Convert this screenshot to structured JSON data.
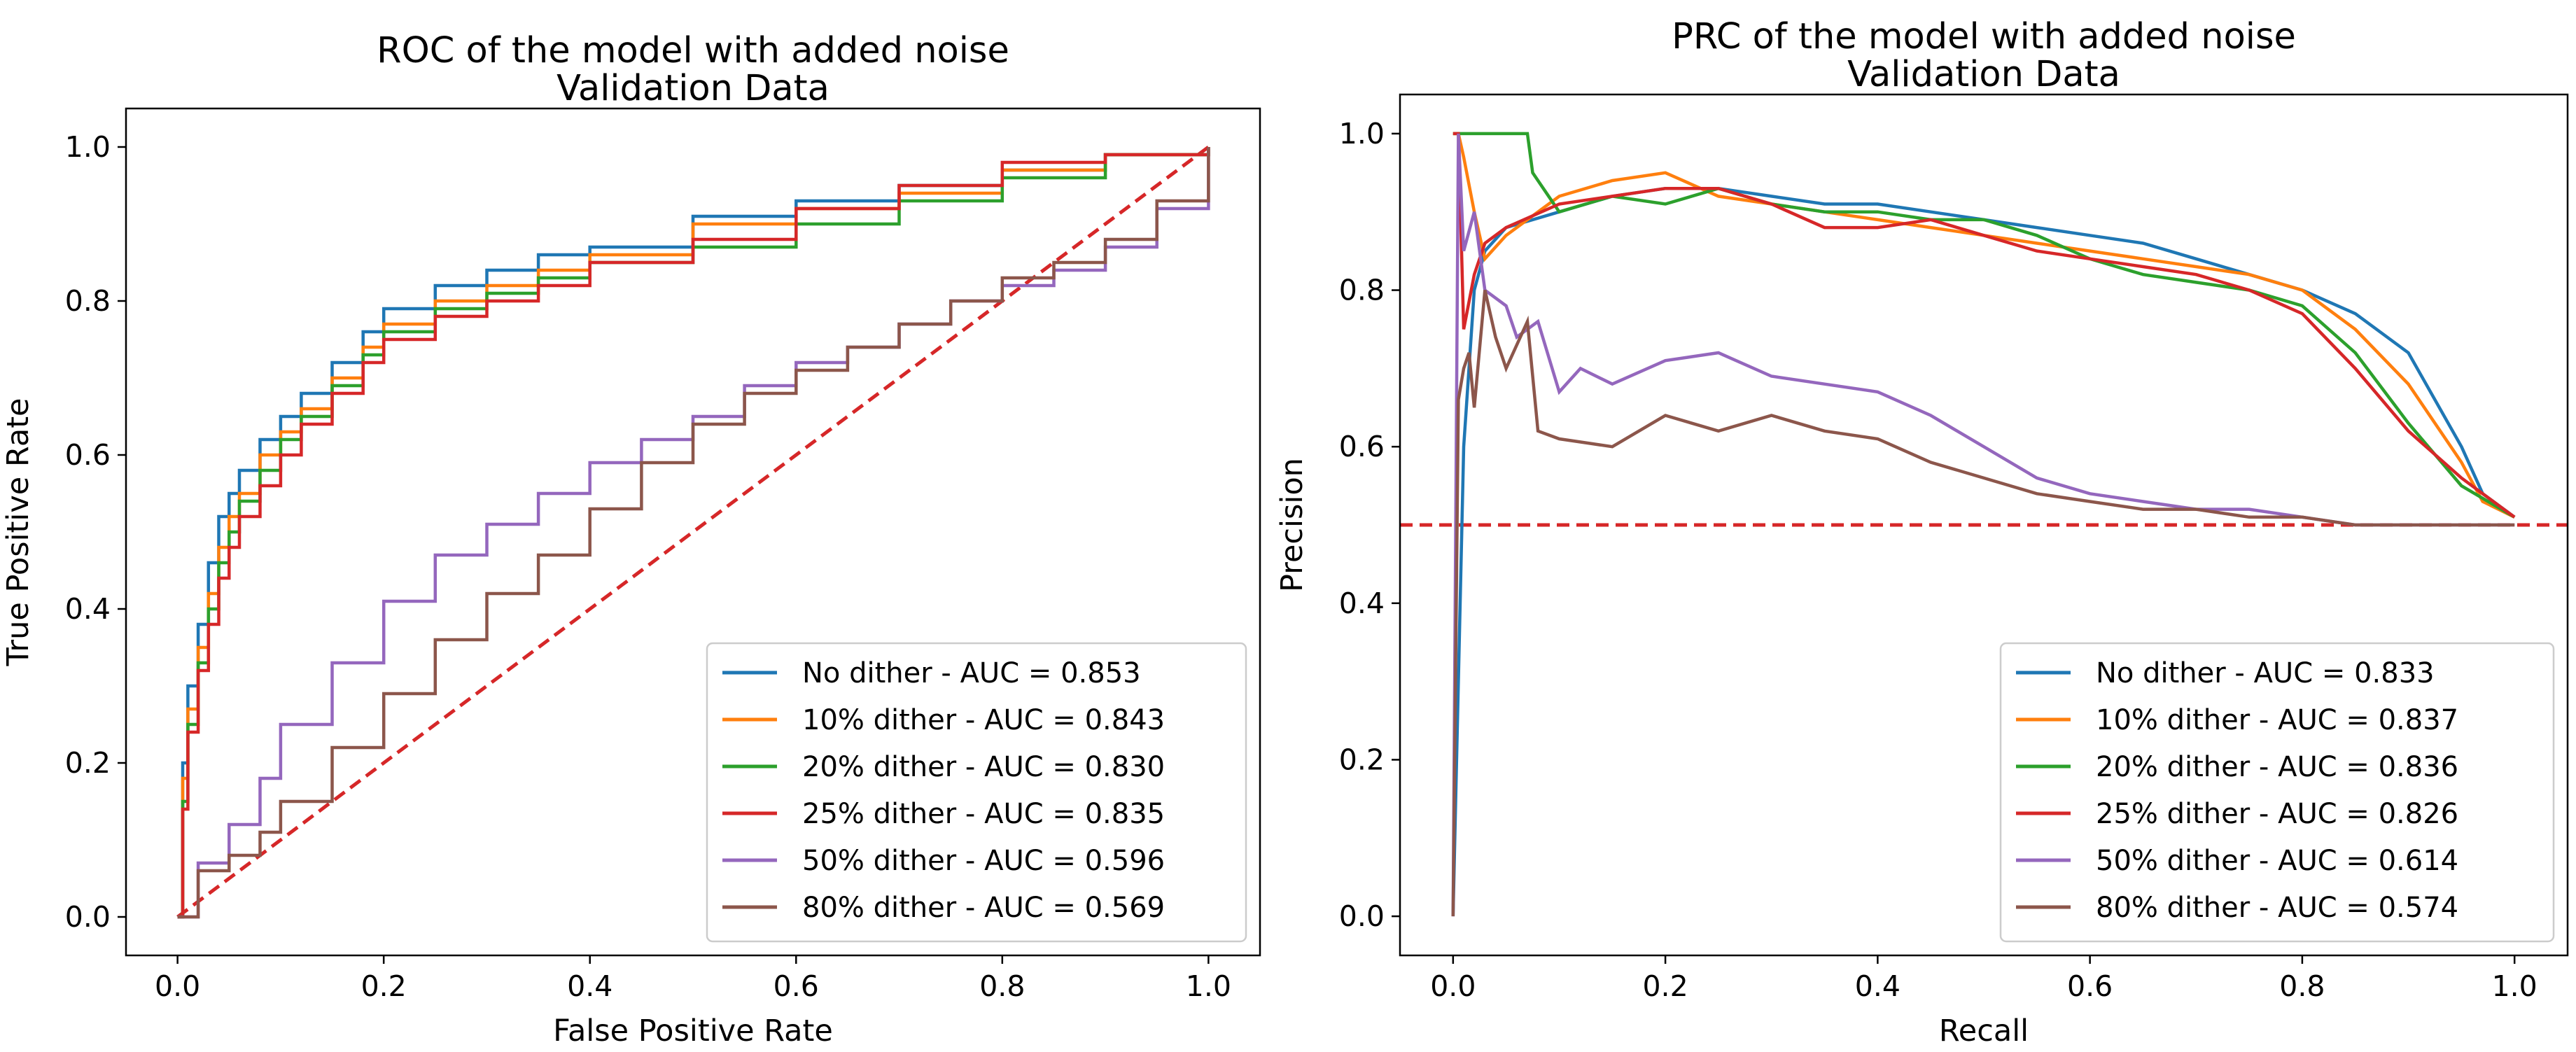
{
  "colors": {
    "No dither": "#1f77b4",
    "10% dither": "#ff7f0e",
    "20% dither": "#2ca02c",
    "25% dither": "#d62728",
    "50% dither": "#9467bd",
    "80% dither": "#8c564b",
    "reference": "#d62728"
  },
  "chart_data": [
    {
      "type": "line",
      "title": "ROC of the model with added noise",
      "subtitle": "Validation Data",
      "xlabel": "False Positive Rate",
      "ylabel": "True Positive Rate",
      "xlim": [
        -0.05,
        1.05
      ],
      "ylim": [
        -0.05,
        1.05
      ],
      "xticks": [
        0.0,
        0.2,
        0.4,
        0.6,
        0.8,
        1.0
      ],
      "yticks": [
        0.0,
        0.2,
        0.4,
        0.6,
        0.8,
        1.0
      ],
      "xtick_labels": [
        "0.0",
        "0.2",
        "0.4",
        "0.6",
        "0.8",
        "1.0"
      ],
      "ytick_labels": [
        "0.0",
        "0.2",
        "0.4",
        "0.6",
        "0.8",
        "1.0"
      ],
      "grid": false,
      "legend_position": "lower-right",
      "reference_line": {
        "x": [
          0,
          1
        ],
        "y": [
          0,
          1
        ],
        "style": "dashed"
      },
      "series": [
        {
          "name": "No dither",
          "legend": "No dither - AUC = 0.853",
          "x": [
            0,
            0.005,
            0.01,
            0.02,
            0.03,
            0.04,
            0.05,
            0.06,
            0.08,
            0.1,
            0.12,
            0.15,
            0.18,
            0.2,
            0.25,
            0.3,
            0.35,
            0.4,
            0.5,
            0.6,
            0.7,
            0.8,
            0.9,
            1.0
          ],
          "y": [
            0,
            0.2,
            0.3,
            0.38,
            0.46,
            0.52,
            0.55,
            0.58,
            0.62,
            0.65,
            0.68,
            0.72,
            0.76,
            0.79,
            0.82,
            0.84,
            0.86,
            0.87,
            0.91,
            0.93,
            0.95,
            0.97,
            0.99,
            1.0
          ]
        },
        {
          "name": "10% dither",
          "legend": "10% dither - AUC = 0.843",
          "x": [
            0,
            0.005,
            0.01,
            0.02,
            0.03,
            0.04,
            0.05,
            0.06,
            0.08,
            0.1,
            0.12,
            0.15,
            0.18,
            0.2,
            0.25,
            0.3,
            0.35,
            0.4,
            0.5,
            0.6,
            0.7,
            0.8,
            0.9,
            1.0
          ],
          "y": [
            0,
            0.18,
            0.27,
            0.35,
            0.42,
            0.48,
            0.52,
            0.55,
            0.6,
            0.63,
            0.66,
            0.7,
            0.74,
            0.77,
            0.8,
            0.82,
            0.84,
            0.86,
            0.9,
            0.92,
            0.94,
            0.97,
            0.99,
            1.0
          ]
        },
        {
          "name": "20% dither",
          "legend": "20% dither - AUC = 0.830",
          "x": [
            0,
            0.005,
            0.01,
            0.02,
            0.03,
            0.04,
            0.05,
            0.06,
            0.08,
            0.1,
            0.12,
            0.15,
            0.18,
            0.2,
            0.25,
            0.3,
            0.35,
            0.4,
            0.5,
            0.6,
            0.7,
            0.8,
            0.9,
            1.0
          ],
          "y": [
            0,
            0.15,
            0.25,
            0.33,
            0.4,
            0.46,
            0.5,
            0.54,
            0.58,
            0.62,
            0.65,
            0.69,
            0.73,
            0.76,
            0.79,
            0.81,
            0.83,
            0.85,
            0.87,
            0.9,
            0.93,
            0.96,
            0.99,
            1.0
          ]
        },
        {
          "name": "25% dither",
          "legend": "25% dither - AUC = 0.835",
          "x": [
            0,
            0.005,
            0.01,
            0.02,
            0.03,
            0.04,
            0.05,
            0.06,
            0.08,
            0.1,
            0.12,
            0.15,
            0.18,
            0.2,
            0.25,
            0.3,
            0.35,
            0.4,
            0.5,
            0.6,
            0.7,
            0.8,
            0.9,
            1.0
          ],
          "y": [
            0,
            0.14,
            0.24,
            0.32,
            0.38,
            0.44,
            0.48,
            0.52,
            0.56,
            0.6,
            0.64,
            0.68,
            0.72,
            0.75,
            0.78,
            0.8,
            0.82,
            0.85,
            0.88,
            0.92,
            0.95,
            0.98,
            0.99,
            1.0
          ]
        },
        {
          "name": "50% dither",
          "legend": "50% dither - AUC = 0.596",
          "x": [
            0,
            0.02,
            0.05,
            0.08,
            0.1,
            0.15,
            0.2,
            0.25,
            0.3,
            0.35,
            0.4,
            0.45,
            0.5,
            0.55,
            0.6,
            0.65,
            0.7,
            0.75,
            0.8,
            0.85,
            0.9,
            0.95,
            1.0
          ],
          "y": [
            0,
            0.07,
            0.12,
            0.18,
            0.25,
            0.33,
            0.41,
            0.47,
            0.51,
            0.55,
            0.59,
            0.62,
            0.65,
            0.69,
            0.72,
            0.74,
            0.77,
            0.8,
            0.82,
            0.84,
            0.87,
            0.92,
            1.0
          ]
        },
        {
          "name": "80% dither",
          "legend": "80% dither - AUC = 0.569",
          "x": [
            0,
            0.02,
            0.05,
            0.08,
            0.1,
            0.15,
            0.2,
            0.25,
            0.3,
            0.35,
            0.4,
            0.45,
            0.5,
            0.55,
            0.6,
            0.65,
            0.7,
            0.75,
            0.8,
            0.85,
            0.9,
            0.95,
            1.0
          ],
          "y": [
            0,
            0.06,
            0.08,
            0.11,
            0.15,
            0.22,
            0.29,
            0.36,
            0.42,
            0.47,
            0.53,
            0.59,
            0.64,
            0.68,
            0.71,
            0.74,
            0.77,
            0.8,
            0.83,
            0.85,
            0.88,
            0.93,
            1.0
          ]
        }
      ]
    },
    {
      "type": "line",
      "title": "PRC of the model with added noise",
      "subtitle": "Validation Data",
      "xlabel": "Recall",
      "ylabel": "Precision",
      "xlim": [
        -0.05,
        1.05
      ],
      "ylim": [
        -0.05,
        1.05
      ],
      "xticks": [
        0.0,
        0.2,
        0.4,
        0.6,
        0.8,
        1.0
      ],
      "yticks": [
        0.0,
        0.2,
        0.4,
        0.6,
        0.8,
        1.0
      ],
      "xtick_labels": [
        "0.0",
        "0.2",
        "0.4",
        "0.6",
        "0.8",
        "1.0"
      ],
      "ytick_labels": [
        "0.0",
        "0.2",
        "0.4",
        "0.6",
        "0.8",
        "1.0"
      ],
      "grid": false,
      "legend_position": "lower-right",
      "reference_line": {
        "x": [
          -0.05,
          1.05
        ],
        "y": [
          0.5,
          0.5
        ],
        "style": "dashed"
      },
      "series": [
        {
          "name": "No dither",
          "legend": "No dither - AUC = 0.833",
          "x": [
            0,
            0.005,
            0.01,
            0.02,
            0.03,
            0.05,
            0.1,
            0.15,
            0.2,
            0.25,
            0.3,
            0.35,
            0.4,
            0.45,
            0.5,
            0.55,
            0.6,
            0.65,
            0.7,
            0.75,
            0.8,
            0.85,
            0.9,
            0.95,
            0.97,
            1.0
          ],
          "y": [
            0,
            0.3,
            0.6,
            0.8,
            0.85,
            0.88,
            0.9,
            0.92,
            0.93,
            0.93,
            0.92,
            0.91,
            0.91,
            0.9,
            0.89,
            0.88,
            0.87,
            0.86,
            0.84,
            0.82,
            0.8,
            0.77,
            0.72,
            0.6,
            0.54,
            0.51
          ]
        },
        {
          "name": "10% dither",
          "legend": "10% dither - AUC = 0.837",
          "x": [
            0,
            0.005,
            0.01,
            0.02,
            0.03,
            0.05,
            0.1,
            0.15,
            0.2,
            0.25,
            0.3,
            0.35,
            0.4,
            0.45,
            0.5,
            0.55,
            0.6,
            0.65,
            0.7,
            0.75,
            0.8,
            0.85,
            0.9,
            0.95,
            0.97,
            1.0
          ],
          "y": [
            1.0,
            1.0,
            0.97,
            0.9,
            0.84,
            0.87,
            0.92,
            0.94,
            0.95,
            0.92,
            0.91,
            0.9,
            0.89,
            0.88,
            0.87,
            0.86,
            0.85,
            0.84,
            0.83,
            0.82,
            0.8,
            0.75,
            0.68,
            0.58,
            0.53,
            0.51
          ]
        },
        {
          "name": "20% dither",
          "legend": "20% dither - AUC = 0.836",
          "x": [
            0,
            0.005,
            0.01,
            0.02,
            0.03,
            0.05,
            0.07,
            0.075,
            0.1,
            0.15,
            0.2,
            0.25,
            0.3,
            0.35,
            0.4,
            0.45,
            0.5,
            0.55,
            0.6,
            0.65,
            0.7,
            0.75,
            0.8,
            0.85,
            0.9,
            0.95,
            1.0
          ],
          "y": [
            1.0,
            1.0,
            1.0,
            1.0,
            1.0,
            1.0,
            1.0,
            0.95,
            0.9,
            0.92,
            0.91,
            0.93,
            0.91,
            0.9,
            0.9,
            0.89,
            0.89,
            0.87,
            0.84,
            0.82,
            0.81,
            0.8,
            0.78,
            0.72,
            0.63,
            0.55,
            0.51
          ]
        },
        {
          "name": "25% dither",
          "legend": "25% dither - AUC = 0.826",
          "x": [
            0,
            0.005,
            0.01,
            0.02,
            0.03,
            0.05,
            0.1,
            0.15,
            0.2,
            0.25,
            0.3,
            0.35,
            0.4,
            0.45,
            0.5,
            0.55,
            0.6,
            0.65,
            0.7,
            0.75,
            0.8,
            0.85,
            0.9,
            0.95,
            0.97,
            1.0
          ],
          "y": [
            1.0,
            1.0,
            0.75,
            0.82,
            0.86,
            0.88,
            0.91,
            0.92,
            0.93,
            0.93,
            0.91,
            0.88,
            0.88,
            0.89,
            0.87,
            0.85,
            0.84,
            0.83,
            0.82,
            0.8,
            0.77,
            0.7,
            0.62,
            0.56,
            0.54,
            0.51
          ]
        },
        {
          "name": "50% dither",
          "legend": "50% dither - AUC = 0.614",
          "x": [
            0,
            0.005,
            0.01,
            0.02,
            0.03,
            0.05,
            0.06,
            0.08,
            0.1,
            0.12,
            0.15,
            0.2,
            0.25,
            0.3,
            0.35,
            0.4,
            0.45,
            0.5,
            0.55,
            0.6,
            0.65,
            0.7,
            0.75,
            0.8,
            0.85,
            0.9,
            0.95,
            1.0
          ],
          "y": [
            0,
            1.0,
            0.85,
            0.9,
            0.8,
            0.78,
            0.74,
            0.76,
            0.67,
            0.7,
            0.68,
            0.71,
            0.72,
            0.69,
            0.68,
            0.67,
            0.64,
            0.6,
            0.56,
            0.54,
            0.53,
            0.52,
            0.52,
            0.51,
            0.5,
            0.5,
            0.5,
            0.5
          ]
        },
        {
          "name": "80% dither",
          "legend": "80% dither - AUC = 0.574",
          "x": [
            0,
            0.005,
            0.01,
            0.015,
            0.02,
            0.03,
            0.04,
            0.05,
            0.07,
            0.08,
            0.1,
            0.15,
            0.2,
            0.25,
            0.3,
            0.35,
            0.4,
            0.45,
            0.5,
            0.55,
            0.6,
            0.65,
            0.7,
            0.75,
            0.8,
            0.85,
            0.9,
            0.95,
            1.0
          ],
          "y": [
            0,
            0.66,
            0.7,
            0.72,
            0.65,
            0.8,
            0.74,
            0.7,
            0.76,
            0.62,
            0.61,
            0.6,
            0.64,
            0.62,
            0.64,
            0.62,
            0.61,
            0.58,
            0.56,
            0.54,
            0.53,
            0.52,
            0.52,
            0.51,
            0.51,
            0.5,
            0.5,
            0.5,
            0.5
          ]
        }
      ]
    }
  ]
}
